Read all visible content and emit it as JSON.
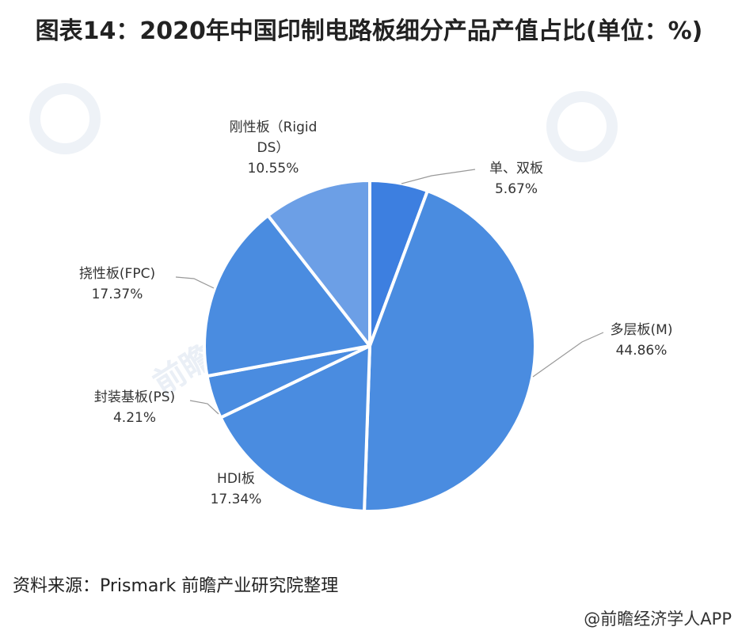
{
  "title": "图表14：2020年中国印制电路板细分产品产值占比(单位：%)",
  "watermark": "前瞻产业研究院",
  "source": "资料来源：Prismark 前瞻产业研究院整理",
  "credit": "@前瞻经济学人APP",
  "colors": {
    "slice_dark": "#3d7fe0",
    "slice_main": "#4a8ce0",
    "slice_light": "#6c9fe6",
    "separator": "#ffffff",
    "leader": "#999999"
  },
  "chart_data": {
    "type": "pie",
    "slices": [
      {
        "label_lines": [
          "单、双板"
        ],
        "value": 5.67,
        "display": "5.67%"
      },
      {
        "label_lines": [
          "多层板(M)"
        ],
        "value": 44.86,
        "display": "44.86%"
      },
      {
        "label_lines": [
          "HDI板"
        ],
        "value": 17.34,
        "display": "17.34%"
      },
      {
        "label_lines": [
          "封装基板(PS)"
        ],
        "value": 4.21,
        "display": "4.21%"
      },
      {
        "label_lines": [
          "挠性板(FPC)"
        ],
        "value": 17.37,
        "display": "17.37%"
      },
      {
        "label_lines": [
          "刚性板（Rigid",
          "DS）"
        ],
        "value": 10.55,
        "display": "10.55%"
      }
    ]
  }
}
